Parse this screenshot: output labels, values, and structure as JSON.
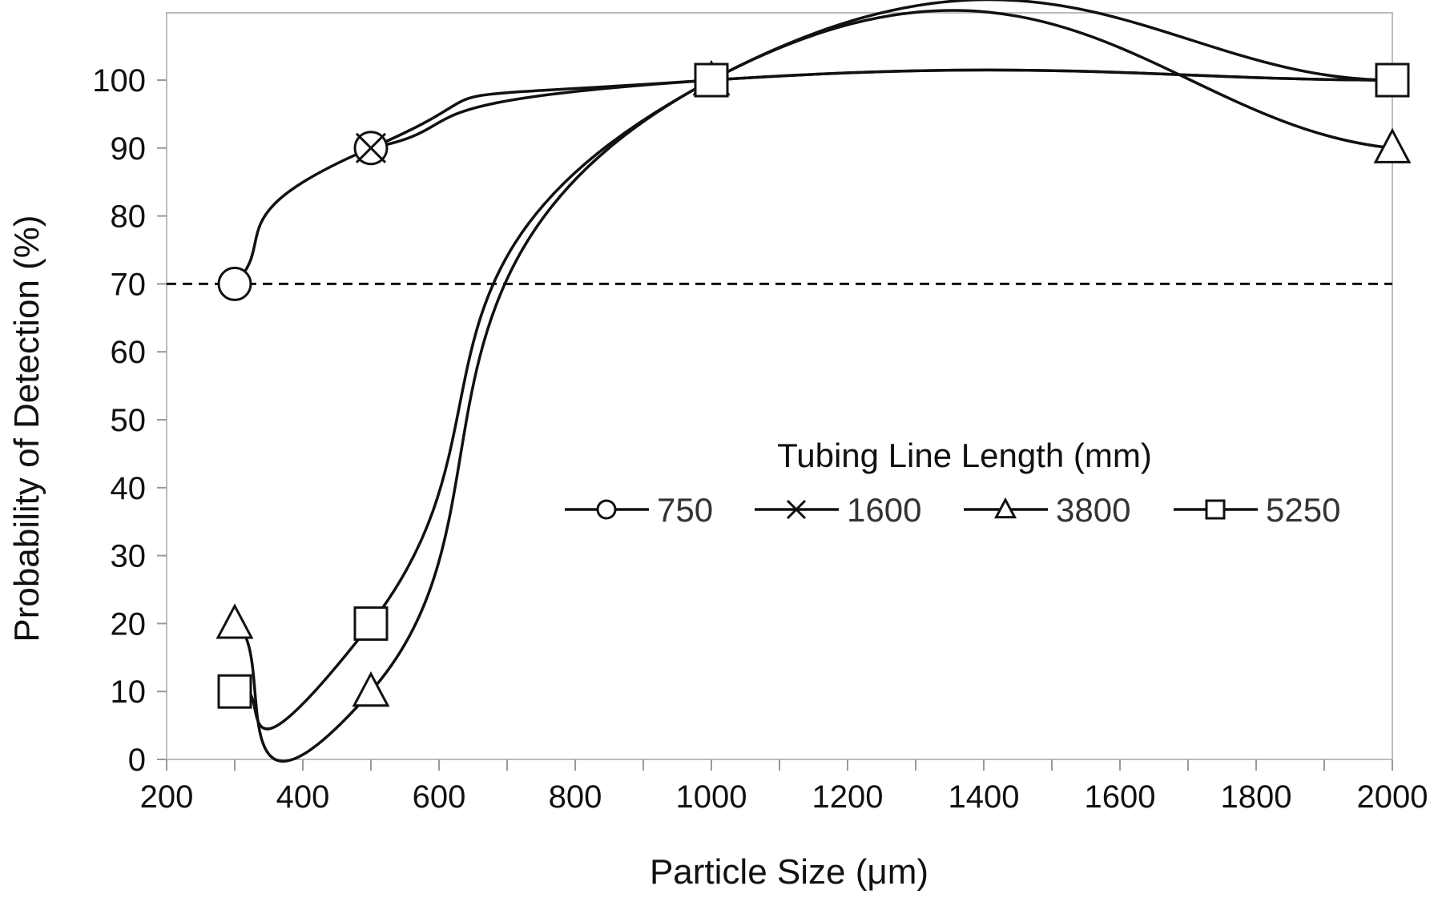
{
  "chart_data": {
    "type": "line",
    "title": "",
    "xlabel": "Particle Size  (μm)",
    "ylabel": "Probability of Detection  (%)",
    "xlim": [
      200,
      2000
    ],
    "ylim": [
      0,
      110
    ],
    "xticks": [
      "200",
      "400",
      "600",
      "800",
      "1000",
      "1200",
      "1400",
      "1600",
      "1800",
      "2000"
    ],
    "yticks": [
      "0",
      "10",
      "20",
      "30",
      "40",
      "50",
      "60",
      "70",
      "80",
      "90",
      "100"
    ],
    "grid": false,
    "reference_line": {
      "y": 70,
      "style": "dashed"
    },
    "legend": {
      "title": "Tubing Line Length (mm)",
      "placement": "center-right"
    },
    "series": [
      {
        "name": "750",
        "marker": "circle",
        "x": [
          300,
          500,
          1000,
          2000
        ],
        "y": [
          70,
          90,
          100,
          100
        ]
      },
      {
        "name": "1600",
        "marker": "x",
        "x": [
          500,
          1000,
          2000
        ],
        "y": [
          90,
          100,
          100
        ]
      },
      {
        "name": "3800",
        "marker": "triangle",
        "x": [
          300,
          500,
          1000,
          2000
        ],
        "y": [
          20,
          10,
          100,
          90
        ]
      },
      {
        "name": "5250",
        "marker": "square",
        "x": [
          300,
          500,
          1000,
          2000
        ],
        "y": [
          10,
          20,
          100,
          100
        ]
      }
    ]
  }
}
